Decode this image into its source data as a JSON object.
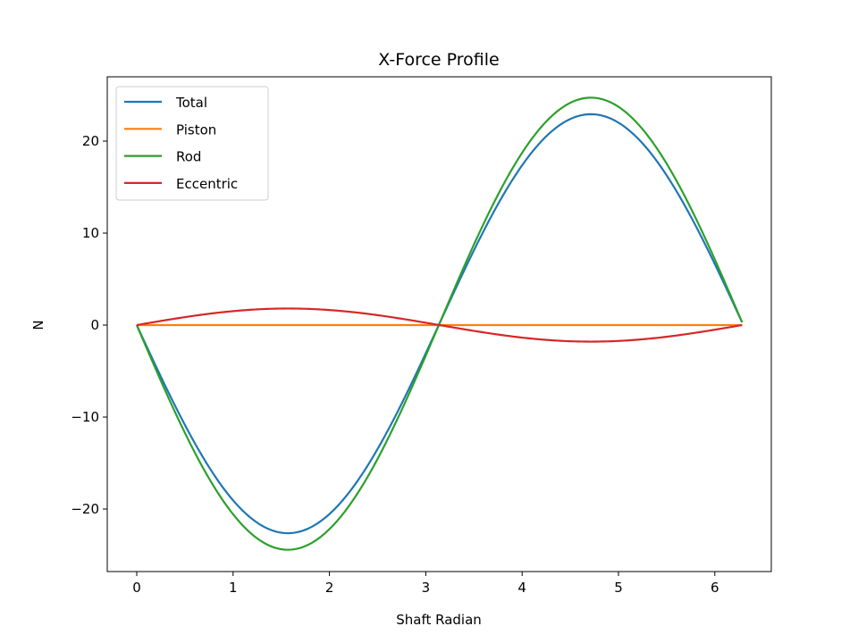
{
  "chart_data": {
    "type": "line",
    "title": "X-Force Profile",
    "xlabel": "Shaft Radian",
    "ylabel": "N",
    "xlim": [
      -0.31,
      6.6
    ],
    "ylim": [
      -26.8,
      26.8
    ],
    "xticks": [
      0,
      1,
      2,
      3,
      4,
      5,
      6
    ],
    "yticks": [
      -20,
      -10,
      0,
      10,
      20
    ],
    "ytick_labels": [
      "−20",
      "−10",
      "0",
      "10",
      "20"
    ],
    "grid": false,
    "legend_position": "upper left",
    "series": [
      {
        "name": "Total",
        "color": "#1f77b4",
        "formula": "-22.7*sin(x)",
        "peak": 22.7,
        "trough": -22.7
      },
      {
        "name": "Piston",
        "color": "#ff7f0e",
        "formula": "0",
        "peak": 0,
        "trough": 0
      },
      {
        "name": "Rod",
        "color": "#2ca02c",
        "formula": "-24.5*sin(x)",
        "peak": 24.5,
        "trough": -24.5
      },
      {
        "name": "Eccentric",
        "color": "#d62728",
        "formula": "1.8*sin(x)",
        "peak": 1.8,
        "trough": -1.8
      }
    ],
    "x_range": [
      0,
      6.2832
    ],
    "sample_points": {
      "x": [
        0,
        0.785,
        1.571,
        2.356,
        3.142,
        3.927,
        4.712,
        5.498,
        6.283
      ],
      "Total": [
        0,
        -16.1,
        -22.7,
        -16.1,
        0,
        16.1,
        22.7,
        16.1,
        0.3
      ],
      "Piston": [
        0,
        0,
        0,
        0,
        0,
        0,
        0,
        0,
        0
      ],
      "Rod": [
        0,
        -17.3,
        -24.5,
        -17.3,
        0,
        17.3,
        24.5,
        17.3,
        0.3
      ],
      "Eccentric": [
        0,
        1.27,
        1.8,
        1.27,
        0,
        -1.27,
        -1.8,
        -1.27,
        0
      ]
    }
  }
}
